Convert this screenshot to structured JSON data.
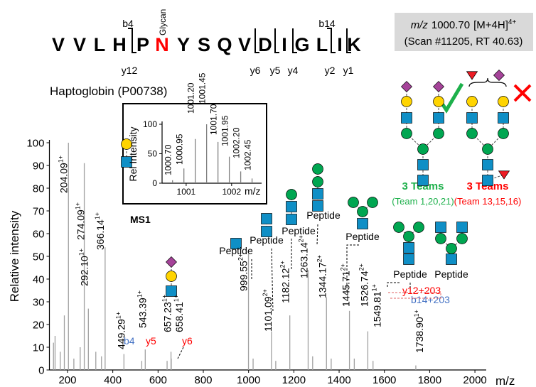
{
  "peptide": {
    "residues": [
      "V",
      "V",
      "L",
      "H",
      "P",
      {
        "text": "N",
        "color": "#ff0000"
      },
      "Y",
      "S",
      "Q",
      "V",
      "D",
      "I",
      "G",
      "L",
      "I",
      "K"
    ],
    "glycosite": "Glycan",
    "b_ions": [
      "b4",
      "b14"
    ],
    "y_ions": [
      "y12",
      "y6",
      "y5",
      "y4",
      "y2",
      "y1"
    ],
    "protein": "Haptoglobin (P00738)"
  },
  "precursor": {
    "mz_label": "m/z",
    "mz": "1000.70",
    "ion": "[M+4H]",
    "charge": "4+",
    "scan": "(Scan #11205, RT 40.63)"
  },
  "teams": [
    {
      "label": "3 Teams",
      "detail": "(Team 1,20,21)",
      "color": "#1db04b"
    },
    {
      "label": "3 Teams",
      "detail": "(Team 13,15,16)",
      "color": "#ff0000"
    }
  ],
  "chart_data": [
    {
      "type": "stem",
      "x_label": "m/z",
      "y_label": "Relative intensity",
      "color": "#a0a0a0",
      "xlim": [
        120,
        2050
      ],
      "xticks": [
        200,
        400,
        600,
        800,
        1000,
        1200,
        1400,
        1600,
        1800,
        2000
      ],
      "ylim": [
        0,
        100
      ],
      "yticks": [
        0,
        10,
        20,
        30,
        40,
        50,
        60,
        70,
        80,
        90,
        100
      ],
      "x": [
        138,
        145,
        168,
        186,
        228,
        256,
        325,
        350,
        528,
        640,
        1020,
        1120,
        1283,
        1365,
        1467
      ],
      "values": [
        12,
        15,
        8,
        24,
        5,
        10,
        8,
        6,
        4,
        4,
        5,
        4,
        6,
        5,
        5
      ],
      "labeled_peaks": [
        {
          "mz": 204.09,
          "label": "204.09",
          "charge": "1+",
          "intensity": 100
        },
        {
          "mz": 274.09,
          "label": "274.09",
          "charge": "1+",
          "intensity": 91
        },
        {
          "mz": 292.1,
          "label": "292.10",
          "charge": "1+",
          "intensity": 27
        },
        {
          "mz": 366.14,
          "label": "366.14",
          "charge": "1+",
          "intensity": 54
        },
        {
          "mz": 449.29,
          "label": "449.29",
          "charge": "1+",
          "intensity": 7
        },
        {
          "mz": 543.39,
          "label": "543.39",
          "charge": "1+",
          "intensity": 9
        },
        {
          "mz": 657.23,
          "label": "657.23",
          "charge": "1+",
          "intensity": 8
        },
        {
          "mz": 658.41,
          "label": "658.41",
          "charge": "1+",
          "intensity": 5
        },
        {
          "mz": 999.55,
          "label": "999.55",
          "charge": "2+",
          "intensity": 51
        },
        {
          "mz": 1101.09,
          "label": "1101.09",
          "charge": "2+",
          "intensity": 17
        },
        {
          "mz": 1182.12,
          "label": "1182.12",
          "charge": "2+",
          "intensity": 24
        },
        {
          "mz": 1263.14,
          "label": "1263.14",
          "charge": "2+",
          "intensity": 44
        },
        {
          "mz": 1344.17,
          "label": "1344.17",
          "charge": "2+",
          "intensity": 32
        },
        {
          "mz": 1445.71,
          "label": "1445.71",
          "charge": "2+",
          "intensity": 26
        },
        {
          "mz": 1526.74,
          "label": "1526.74",
          "charge": "2+",
          "intensity": 17
        },
        {
          "mz": 1549.81,
          "label": "1549.81",
          "charge": "1+",
          "intensity": 4
        },
        {
          "mz": 1738.9,
          "label": "1738.90",
          "charge": "1+",
          "intensity": 2
        }
      ],
      "annotations": [
        {
          "text": "b4",
          "color": "#4472c4"
        },
        {
          "text": "y5",
          "color": "#ff0000"
        },
        {
          "text": "y6",
          "color": "#ff0000"
        },
        {
          "text": "y12+203",
          "color": "#ff0000"
        },
        {
          "text": "b14+203",
          "color": "#4472c4"
        }
      ],
      "glycan_labels": [
        "Peptide",
        "Peptide",
        "Peptide",
        "Peptide",
        "Peptide",
        "Peptide",
        "Peptide"
      ]
    },
    {
      "type": "stem",
      "title": "MS1",
      "x_label": "m/z",
      "y_label": "Rel Intensity",
      "color": "#808080",
      "xlim": [
        1000.47,
        1002.66
      ],
      "xticks": [
        1001,
        1002
      ],
      "ylim": [
        0,
        100
      ],
      "yticks": [
        0,
        50,
        100
      ],
      "x": [
        1000.7,
        1000.95,
        1001.2,
        1001.45,
        1001.7,
        1001.95,
        1002.2,
        1002.45
      ],
      "x_labels": [
        "1000.70",
        "1000.95",
        "1001.20",
        "1001.45",
        "1001.70",
        "1001.95",
        "1002.20",
        "1002.45"
      ],
      "values": [
        5,
        25,
        75,
        100,
        70,
        45,
        20,
        8
      ]
    }
  ]
}
